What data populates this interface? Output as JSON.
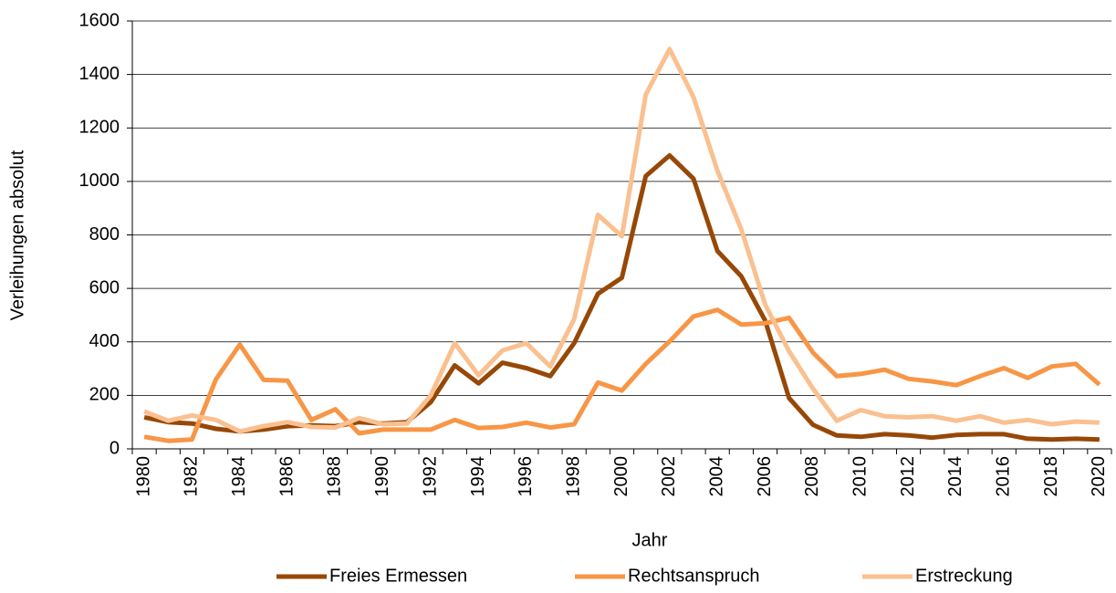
{
  "chart_data": {
    "type": "line",
    "x_label": "Jahr",
    "y_label": "Verleihungen absolut",
    "categories": [
      "1980",
      null,
      "1982",
      null,
      "1984",
      null,
      "1986",
      null,
      "1988",
      null,
      "1990",
      null,
      "1992",
      null,
      "1994",
      null,
      "1996",
      null,
      "1998",
      null,
      "2000",
      null,
      "2002",
      null,
      "2004",
      null,
      "2006",
      null,
      "2008",
      null,
      "2010",
      null,
      "2012",
      null,
      "2014",
      null,
      "2016",
      null,
      "2018",
      null,
      "2020"
    ],
    "series": [
      {
        "name": "Freies Ermessen",
        "color": "#974806",
        "values": [
          118,
          100,
          95,
          75,
          65,
          72,
          85,
          88,
          85,
          100,
          95,
          100,
          175,
          312,
          245,
          322,
          302,
          272,
          395,
          580,
          640,
          1020,
          1097,
          1010,
          740,
          645,
          480,
          190,
          90,
          50,
          45,
          55,
          50,
          42,
          52,
          55,
          55,
          38,
          35,
          38,
          35
        ]
      },
      {
        "name": "Rechtsanspruch",
        "color": "#f79646",
        "values": [
          45,
          30,
          35,
          260,
          390,
          258,
          255,
          108,
          148,
          58,
          72,
          72,
          72,
          108,
          78,
          82,
          98,
          80,
          92,
          248,
          218,
          318,
          402,
          495,
          520,
          465,
          470,
          490,
          360,
          272,
          280,
          296,
          262,
          252,
          238,
          272,
          302,
          265,
          308,
          318,
          240
        ]
      },
      {
        "name": "Erstreckung",
        "color": "#fac090",
        "values": [
          140,
          105,
          125,
          108,
          65,
          85,
          100,
          82,
          80,
          115,
          92,
          95,
          200,
          395,
          275,
          368,
          395,
          308,
          485,
          875,
          795,
          1325,
          1495,
          1315,
          1040,
          820,
          540,
          365,
          225,
          105,
          145,
          122,
          118,
          122,
          105,
          122,
          98,
          108,
          92,
          102,
          98
        ]
      }
    ],
    "ylim": [
      0,
      1600
    ],
    "yticks": [
      0,
      200,
      400,
      600,
      800,
      1000,
      1200,
      1400,
      1600
    ],
    "grid": true,
    "legend": "bottom"
  }
}
